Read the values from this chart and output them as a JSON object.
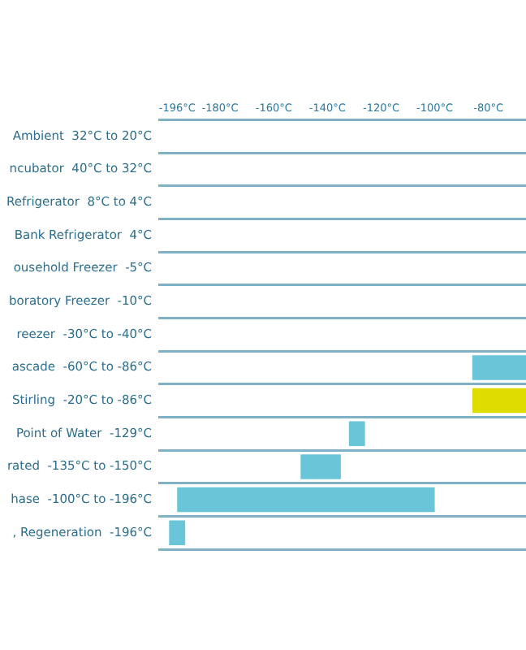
{
  "chart_data": {
    "type": "bar",
    "orientation": "horizontal",
    "categories": [
      "Ambient  32°C to 20°C",
      "ncubator  40°C to 32°C",
      "Refrigerator  8°C to 4°C",
      "Bank Refrigerator  4°C",
      "ousehold Freezer  -5°C",
      "boratory Freezer  -10°C",
      "reezer  -30°C to -40°C",
      "ascade  -60°C to -86°C",
      "Stirling  -20°C to -86°C",
      "Point of Water  -129°C",
      "rated  -135°C to -150°C",
      "hase  -100°C to -196°C",
      ", Regeneration  -196°C"
    ],
    "base": [
      null,
      null,
      null,
      null,
      null,
      null,
      null,
      -86,
      -86,
      -132,
      -150,
      -196,
      -199
    ],
    "values": [
      null,
      null,
      null,
      null,
      null,
      null,
      null,
      20,
      20,
      6,
      15,
      96,
      6
    ],
    "colors": [
      "#6ac5d8",
      "#6ac5d8",
      "#6ac5d8",
      "#6ac5d8",
      "#6ac5d8",
      "#6ac5d8",
      "#6ac5d8",
      "#6ac5d8",
      "#dedc00",
      "#6ac5d8",
      "#6ac5d8",
      "#6ac5d8",
      "#6ac5d8"
    ],
    "xlim": [
      -203,
      -66
    ],
    "xticks": [
      {
        "value": -196,
        "label": "-196°C"
      },
      {
        "value": -180,
        "label": "-180°C"
      },
      {
        "value": -160,
        "label": "-160°C"
      },
      {
        "value": -140,
        "label": "-140°C"
      },
      {
        "value": -120,
        "label": "-120°C"
      },
      {
        "value": -100,
        "label": "-100°C"
      },
      {
        "value": -80,
        "label": "-80°C"
      }
    ],
    "grid": "y",
    "legend": false
  }
}
